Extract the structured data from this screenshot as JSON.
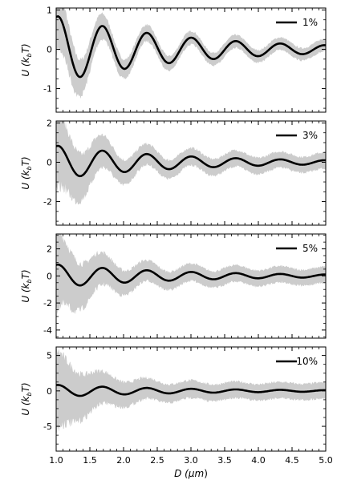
{
  "chart_data": [
    {
      "type": "area",
      "ylabel": "U (k_bT)",
      "ylabel_parts": [
        "U (",
        "k",
        "b",
        "T)"
      ],
      "xlim": [
        1.0,
        5.0
      ],
      "ylim": [
        -1.6,
        1.05
      ],
      "yticks": [
        -1,
        0,
        1
      ],
      "legend": "1%",
      "legend_position": "top-right",
      "band_halfwidth_start": 0.7,
      "mean_amplitude": 0.85,
      "colors": {
        "line": "#000000",
        "band": "#cccccc"
      }
    },
    {
      "type": "area",
      "ylabel": "U (k_bT)",
      "ylabel_parts": [
        "U (",
        "k",
        "b",
        "T)"
      ],
      "xlim": [
        1.0,
        5.0
      ],
      "ylim": [
        -3.2,
        2.1
      ],
      "yticks": [
        -2,
        0,
        2
      ],
      "legend": "3%",
      "legend_position": "top-right",
      "band_halfwidth_start": 1.8,
      "mean_amplitude": 0.85,
      "colors": {
        "line": "#000000",
        "band": "#cccccc"
      }
    },
    {
      "type": "area",
      "ylabel": "U (k_bT)",
      "ylabel_parts": [
        "U (",
        "k",
        "b",
        "T)"
      ],
      "xlim": [
        1.0,
        5.0
      ],
      "ylim": [
        -4.6,
        3.1
      ],
      "yticks": [
        -4,
        -2,
        0,
        2
      ],
      "legend": "5%",
      "legend_position": "top-right",
      "band_halfwidth_start": 2.6,
      "mean_amplitude": 0.85,
      "colors": {
        "line": "#000000",
        "band": "#cccccc"
      }
    },
    {
      "type": "area",
      "ylabel": "U (k_bT)",
      "ylabel_parts": [
        "U (",
        "k",
        "b",
        "T)"
      ],
      "xlim": [
        1.0,
        5.0
      ],
      "ylim": [
        -8.5,
        6.2
      ],
      "yticks": [
        -5,
        0,
        5
      ],
      "legend": "10%",
      "legend_position": "top-right",
      "band_halfwidth_start": 5.0,
      "mean_amplitude": 0.85,
      "colors": {
        "line": "#000000",
        "band": "#cccccc"
      }
    }
  ],
  "xaxis": {
    "xlabel_parts": [
      "D (",
      "μm",
      ")"
    ],
    "ticks": [
      1.0,
      1.5,
      2.0,
      2.5,
      3.0,
      3.5,
      4.0,
      4.5,
      5.0
    ],
    "tick_labels": [
      "1.0",
      "1.5",
      "2.0",
      "2.5",
      "3.0",
      "3.5",
      "4.0",
      "4.5",
      "5.0"
    ]
  }
}
